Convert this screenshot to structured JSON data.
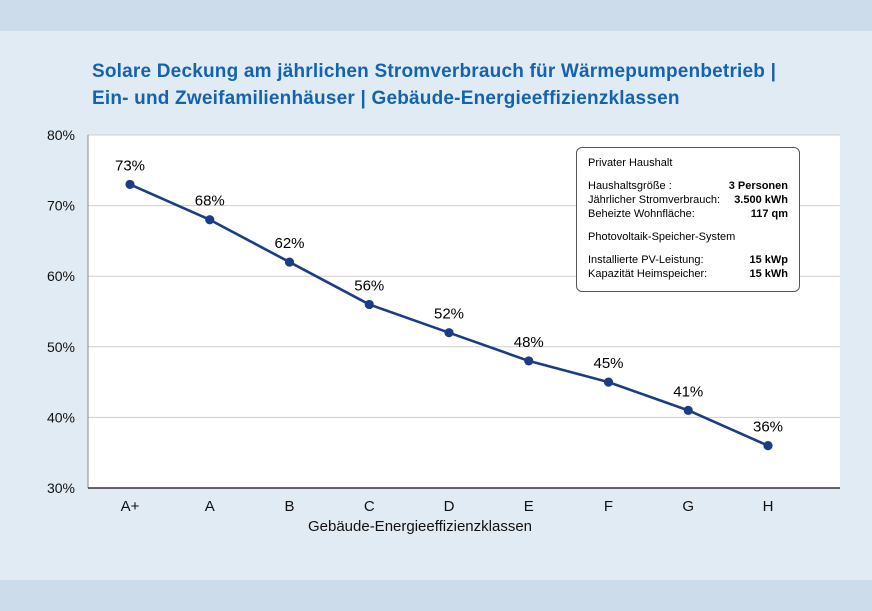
{
  "page": {
    "title_line1": "Solare Deckung am jährlichen Stromverbrauch für Wärmepumpenbetrieb |",
    "title_line2": "Ein- und Zweifamilienhäuser | Gebäude-Energieeffizienzklassen"
  },
  "chart_data": {
    "type": "line",
    "title": "Solare Deckung am jährlichen Stromverbrauch für Wärmepumpenbetrieb | Ein- und Zweifamilienhäuser | Gebäude-Energieeffizienzklassen",
    "categories": [
      "A+",
      "A",
      "B",
      "C",
      "D",
      "E",
      "F",
      "G",
      "H"
    ],
    "values": [
      73,
      68,
      62,
      56,
      52,
      48,
      45,
      41,
      36
    ],
    "value_labels": [
      "73%",
      "68%",
      "62%",
      "56%",
      "52%",
      "48%",
      "45%",
      "41%",
      "36%"
    ],
    "xlabel": "Gebäude-Energieeffizienzklassen",
    "ylabel": "",
    "ylim": [
      30,
      80
    ],
    "ytick_step": 10,
    "ytick_labels": [
      "30%",
      "40%",
      "50%",
      "60%",
      "70%",
      "80%"
    ],
    "grid": true,
    "legend_position": "none",
    "marker": "circle"
  },
  "info_box": {
    "header": "Privater Haushalt",
    "rows1": [
      {
        "label": "Haushaltsgröße :",
        "value": "3 Personen"
      },
      {
        "label": "Jährlicher Stromverbrauch:",
        "value": "3.500 kWh"
      },
      {
        "label": "Beheizte Wohnfläche:",
        "value": "117 qm"
      }
    ],
    "subheader": "Photovoltaik-Speicher-System",
    "rows2": [
      {
        "label": "Installierte PV-Leistung:",
        "value": "15 kWp"
      },
      {
        "label": "Kapazität Heimspeicher:",
        "value": "15 kWh"
      }
    ]
  },
  "colors": {
    "background": "#e1ebf4",
    "band": "#ccdcea",
    "title": "#1563ae",
    "line": "#1c3d85",
    "plot_bg": "#ffffff",
    "grid": "#cfcfcf",
    "axis": "#333333",
    "text": "#111111"
  }
}
